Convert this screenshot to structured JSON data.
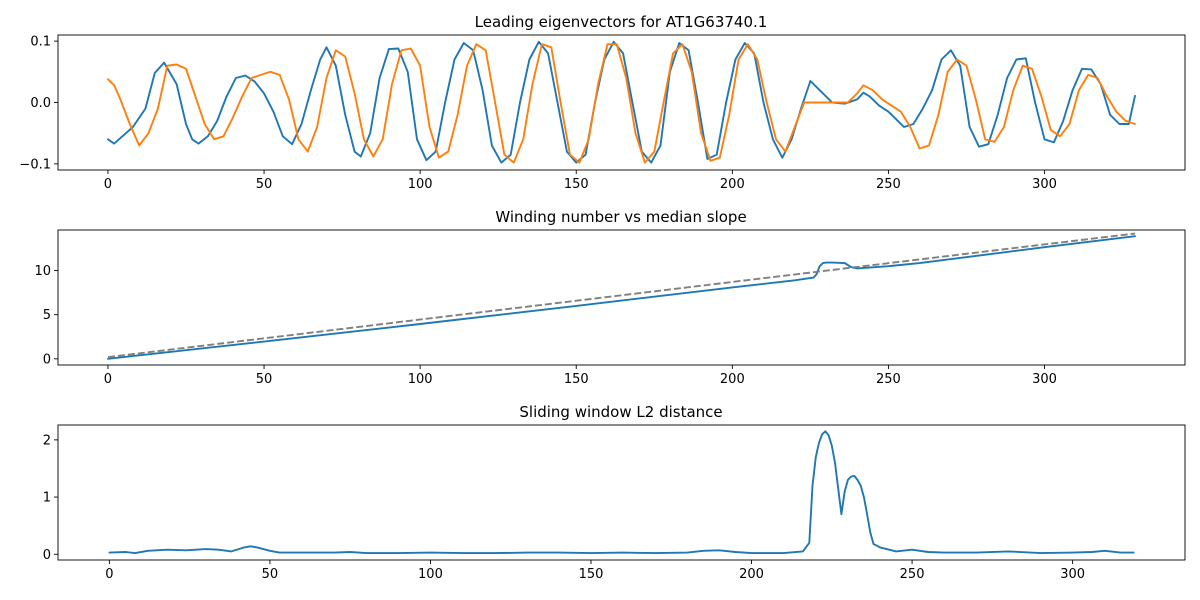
{
  "chart_data": [
    {
      "type": "line",
      "title": "Leading eigenvectors for AT1G63740.1",
      "xlabel": "",
      "ylabel": "",
      "xlim": [
        -16,
        345
      ],
      "ylim": [
        -0.11,
        0.11
      ],
      "xticks": [
        0,
        50,
        100,
        150,
        200,
        250,
        300
      ],
      "yticks": [
        -0.1,
        0.0,
        0.1
      ],
      "ytick_labels": [
        "−0.1",
        "0.0",
        "0.1"
      ],
      "grid": false,
      "series": [
        {
          "color": "#1f77b4",
          "x": [
            0,
            2,
            4,
            8,
            12,
            15,
            18,
            22,
            25,
            27,
            29,
            32,
            35,
            38,
            41,
            44,
            47,
            50,
            53,
            56,
            59,
            62,
            65,
            68,
            70,
            73,
            76,
            79,
            81,
            84,
            87,
            90,
            93,
            96,
            99,
            102,
            105,
            108,
            111,
            114,
            117,
            120,
            123,
            126,
            129,
            132,
            135,
            138,
            141,
            144,
            147,
            150,
            153,
            156,
            159,
            162,
            165,
            168,
            171,
            174,
            177,
            180,
            183,
            186,
            189,
            192,
            195,
            198,
            201,
            204,
            207,
            210,
            213,
            216,
            219,
            222,
            225,
            228,
            232,
            236,
            240,
            242,
            244,
            247,
            250,
            252,
            255,
            258,
            261,
            264,
            267,
            270,
            273,
            276,
            279,
            282,
            285,
            288,
            291,
            294,
            297,
            300,
            303,
            306,
            309,
            312,
            315,
            318,
            321,
            324,
            327,
            329
          ],
          "y": [
            -0.06,
            -0.067,
            -0.058,
            -0.04,
            -0.01,
            0.048,
            0.065,
            0.03,
            -0.035,
            -0.06,
            -0.067,
            -0.055,
            -0.03,
            0.01,
            0.04,
            0.044,
            0.034,
            0.015,
            -0.015,
            -0.055,
            -0.068,
            -0.035,
            0.02,
            0.07,
            0.09,
            0.06,
            -0.02,
            -0.08,
            -0.088,
            -0.05,
            0.04,
            0.087,
            0.088,
            0.05,
            -0.06,
            -0.094,
            -0.08,
            0.0,
            0.07,
            0.097,
            0.085,
            0.02,
            -0.07,
            -0.098,
            -0.085,
            0.0,
            0.07,
            0.099,
            0.08,
            0.0,
            -0.08,
            -0.098,
            -0.085,
            0.0,
            0.07,
            0.099,
            0.08,
            0.0,
            -0.08,
            -0.098,
            -0.07,
            0.05,
            0.097,
            0.085,
            0.0,
            -0.092,
            -0.085,
            0.0,
            0.07,
            0.097,
            0.08,
            0.0,
            -0.06,
            -0.09,
            -0.06,
            -0.01,
            0.035,
            0.02,
            0.0,
            -0.002,
            0.005,
            0.016,
            0.01,
            -0.005,
            -0.015,
            -0.025,
            -0.04,
            -0.035,
            -0.01,
            0.02,
            0.07,
            0.085,
            0.06,
            -0.04,
            -0.072,
            -0.068,
            -0.02,
            0.04,
            0.07,
            0.072,
            0.0,
            -0.06,
            -0.065,
            -0.03,
            0.02,
            0.055,
            0.054,
            0.03,
            -0.02,
            -0.035,
            -0.035,
            0.011
          ]
        },
        {
          "color": "#ff7f0e",
          "x": [
            0,
            2,
            4,
            7,
            10,
            13,
            16,
            19,
            22,
            25,
            28,
            31,
            34,
            37,
            40,
            43,
            46,
            49,
            52,
            55,
            58,
            61,
            64,
            67,
            70,
            73,
            76,
            79,
            82,
            85,
            88,
            91,
            94,
            97,
            100,
            103,
            106,
            109,
            112,
            115,
            118,
            121,
            124,
            127,
            130,
            133,
            136,
            139,
            142,
            145,
            148,
            151,
            154,
            157,
            160,
            163,
            166,
            169,
            172,
            175,
            178,
            181,
            184,
            187,
            190,
            193,
            196,
            199,
            202,
            205,
            208,
            211,
            214,
            217,
            220,
            223,
            226,
            229,
            233,
            237,
            240,
            242,
            245,
            248,
            251,
            254,
            257,
            260,
            263,
            266,
            269,
            272,
            275,
            278,
            281,
            284,
            287,
            290,
            293,
            296,
            299,
            302,
            305,
            308,
            311,
            314,
            317,
            320,
            323,
            326,
            329
          ],
          "y": [
            0.038,
            0.028,
            0.005,
            -0.035,
            -0.07,
            -0.05,
            -0.01,
            0.06,
            0.062,
            0.055,
            0.01,
            -0.035,
            -0.06,
            -0.055,
            -0.025,
            0.01,
            0.04,
            0.045,
            0.05,
            0.045,
            0.005,
            -0.06,
            -0.08,
            -0.04,
            0.04,
            0.085,
            0.075,
            0.015,
            -0.06,
            -0.088,
            -0.06,
            0.03,
            0.085,
            0.088,
            0.06,
            -0.04,
            -0.09,
            -0.08,
            -0.02,
            0.06,
            0.095,
            0.085,
            0.0,
            -0.085,
            -0.098,
            -0.06,
            0.03,
            0.095,
            0.09,
            0.0,
            -0.085,
            -0.098,
            -0.06,
            0.03,
            0.095,
            0.095,
            0.04,
            -0.05,
            -0.098,
            -0.08,
            0.0,
            0.08,
            0.095,
            0.05,
            -0.05,
            -0.095,
            -0.09,
            -0.02,
            0.07,
            0.095,
            0.07,
            0.0,
            -0.06,
            -0.08,
            -0.04,
            0.0,
            0.0,
            0.0,
            0.0,
            0.0,
            0.015,
            0.028,
            0.02,
            0.005,
            -0.005,
            -0.015,
            -0.04,
            -0.075,
            -0.07,
            -0.02,
            0.05,
            0.07,
            0.06,
            0.005,
            -0.06,
            -0.064,
            -0.04,
            0.02,
            0.06,
            0.055,
            0.01,
            -0.045,
            -0.055,
            -0.035,
            0.02,
            0.045,
            0.04,
            0.01,
            -0.015,
            -0.03,
            -0.035
          ]
        }
      ]
    },
    {
      "type": "line",
      "title": "Winding number vs median slope",
      "xlabel": "",
      "ylabel": "",
      "xlim": [
        -16,
        345
      ],
      "ylim": [
        -0.7,
        14.6
      ],
      "xticks": [
        0,
        50,
        100,
        150,
        200,
        250,
        300
      ],
      "yticks": [
        0,
        5,
        10
      ],
      "ytick_labels": [
        "0",
        "5",
        "10"
      ],
      "grid": false,
      "series": [
        {
          "color": "#1f77b4",
          "style": "solid",
          "x": [
            0,
            50,
            100,
            150,
            200,
            220,
            226,
            227,
            228,
            229,
            230,
            232,
            236,
            238,
            240,
            250,
            260,
            300,
            329
          ],
          "y": [
            0.0,
            1.95,
            3.95,
            6.0,
            8.1,
            8.9,
            9.2,
            9.6,
            10.5,
            10.85,
            10.9,
            10.9,
            10.85,
            10.4,
            10.25,
            10.5,
            10.85,
            12.65,
            13.9
          ]
        },
        {
          "color": "#808080",
          "style": "dashed",
          "x": [
            0,
            329
          ],
          "y": [
            0.2,
            14.2
          ]
        }
      ]
    },
    {
      "type": "line",
      "title": "Sliding window L2 distance",
      "xlabel": "",
      "ylabel": "",
      "xlim": [
        -16,
        335
      ],
      "ylim": [
        -0.1,
        2.26
      ],
      "xticks": [
        0,
        50,
        100,
        150,
        200,
        250,
        300
      ],
      "yticks": [
        0,
        1,
        2
      ],
      "ytick_labels": [
        "0",
        "1",
        "2"
      ],
      "grid": false,
      "series": [
        {
          "color": "#1f77b4",
          "x": [
            0,
            5,
            8,
            12,
            18,
            24,
            30,
            34,
            38,
            42,
            44,
            46,
            50,
            53,
            60,
            70,
            75,
            80,
            90,
            100,
            110,
            120,
            130,
            140,
            150,
            160,
            170,
            180,
            185,
            190,
            195,
            200,
            210,
            216,
            218,
            219,
            220,
            221,
            222,
            223,
            224,
            225,
            226,
            227,
            228,
            229,
            230,
            231,
            232,
            233,
            234,
            235,
            236,
            237,
            238,
            239,
            240,
            245,
            250,
            255,
            260,
            270,
            280,
            290,
            300,
            306,
            310,
            315,
            319
          ],
          "y": [
            0.03,
            0.04,
            0.02,
            0.06,
            0.08,
            0.07,
            0.09,
            0.08,
            0.05,
            0.12,
            0.14,
            0.12,
            0.06,
            0.03,
            0.03,
            0.03,
            0.04,
            0.02,
            0.02,
            0.03,
            0.02,
            0.02,
            0.03,
            0.03,
            0.02,
            0.03,
            0.02,
            0.03,
            0.06,
            0.07,
            0.04,
            0.02,
            0.02,
            0.05,
            0.2,
            1.2,
            1.7,
            1.95,
            2.1,
            2.15,
            2.08,
            1.9,
            1.6,
            1.15,
            0.7,
            1.1,
            1.3,
            1.36,
            1.37,
            1.3,
            1.2,
            1.0,
            0.7,
            0.38,
            0.18,
            0.15,
            0.12,
            0.05,
            0.08,
            0.04,
            0.03,
            0.03,
            0.05,
            0.02,
            0.03,
            0.04,
            0.06,
            0.03,
            0.03
          ]
        }
      ]
    }
  ]
}
